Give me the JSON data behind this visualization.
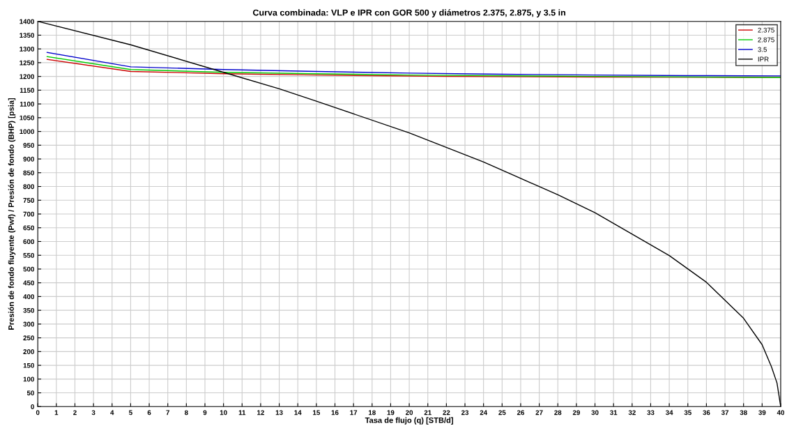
{
  "chart_data": {
    "type": "line",
    "title": "Curva combinada: VLP e IPR con GOR 500 y diámetros 2.375, 2.875, y 3.5 in",
    "xlabel": "Tasa de flujo (q) [STB/d]",
    "ylabel": "Presión de fondo fluyente (Pwf) / Presión de fondo (BHP) [psia]",
    "series": [
      {
        "name": "2.375",
        "color": "#cc0000",
        "x": [
          0.5,
          5,
          10,
          15,
          22,
          30,
          40
        ],
        "values": [
          1262,
          1218,
          1210,
          1205,
          1200,
          1198,
          1196
        ]
      },
      {
        "name": "2.875",
        "color": "#00cc00",
        "x": [
          0.5,
          5,
          10,
          15,
          20,
          30,
          40
        ],
        "values": [
          1272,
          1225,
          1215,
          1210,
          1205,
          1200,
          1196
        ]
      },
      {
        "name": "3.5",
        "color": "#0000cc",
        "x": [
          0.5,
          5,
          10,
          15,
          20,
          25,
          30,
          35,
          40
        ],
        "values": [
          1287,
          1235,
          1225,
          1218,
          1212,
          1208,
          1205,
          1203,
          1202
        ]
      },
      {
        "name": "IPR",
        "color": "#000000",
        "x": [
          0,
          5,
          10,
          13,
          15,
          20,
          24,
          28,
          30,
          34,
          36,
          38,
          39,
          39.5,
          39.8,
          40
        ],
        "values": [
          1400,
          1315,
          1215,
          1155,
          1110,
          995,
          889,
          770,
          705,
          549,
          452,
          321,
          225,
          145,
          86,
          0
        ]
      }
    ],
    "xlim": [
      0,
      40
    ],
    "xticks": [
      0,
      1,
      2,
      3,
      4,
      5,
      6,
      7,
      8,
      9,
      10,
      11,
      12,
      13,
      14,
      15,
      16,
      17,
      18,
      19,
      20,
      21,
      22,
      23,
      24,
      25,
      26,
      27,
      28,
      29,
      30,
      31,
      32,
      33,
      34,
      35,
      36,
      37,
      38,
      39,
      40
    ],
    "ylim": [
      0,
      1400
    ],
    "yticks": [
      0,
      50,
      100,
      150,
      200,
      250,
      300,
      350,
      400,
      450,
      500,
      550,
      600,
      650,
      700,
      750,
      800,
      850,
      900,
      950,
      1000,
      1050,
      1100,
      1150,
      1200,
      1250,
      1300,
      1350,
      1400
    ],
    "grid": true,
    "legend": "top right"
  }
}
